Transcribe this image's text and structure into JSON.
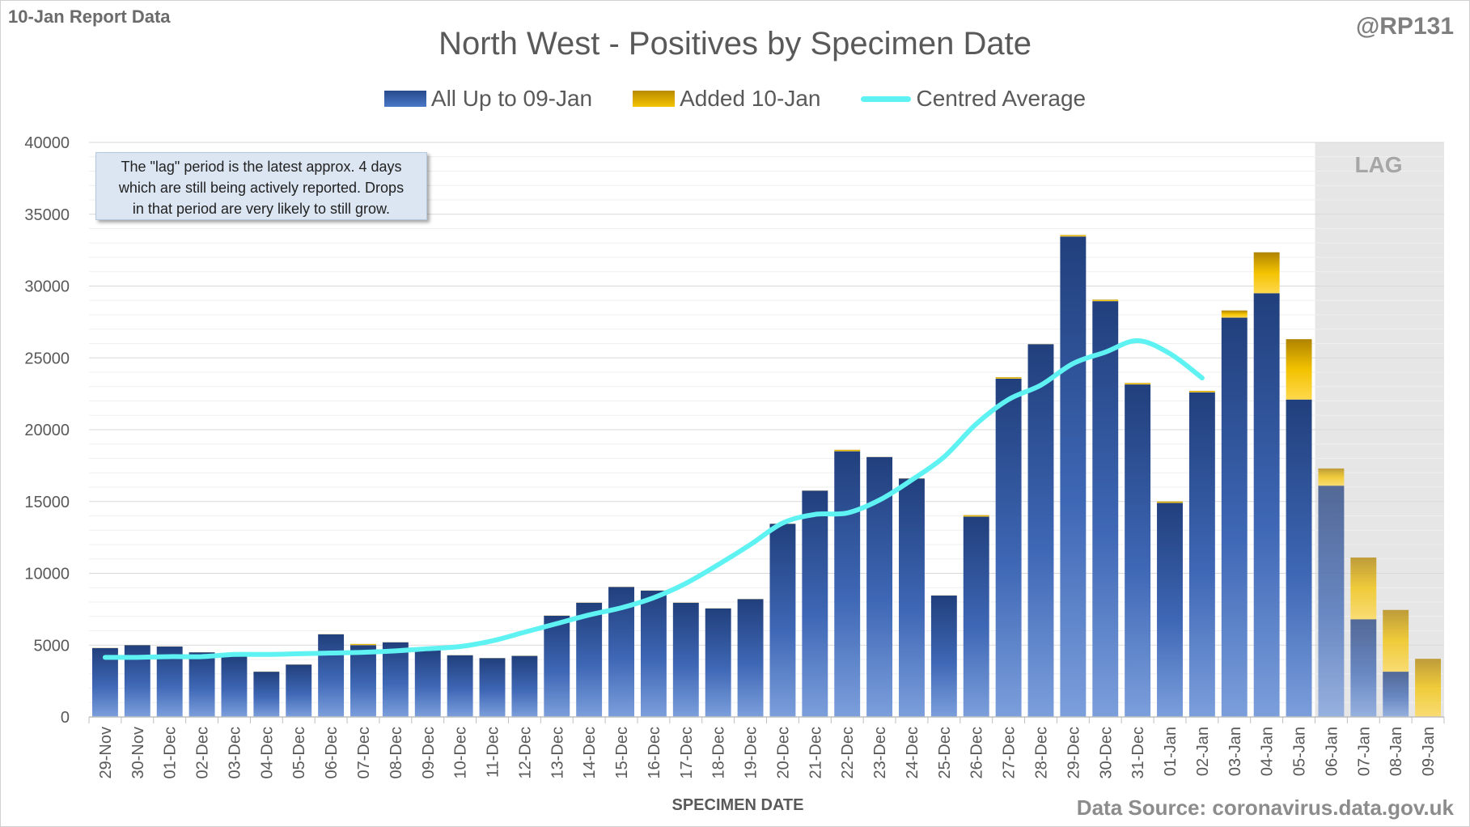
{
  "header": {
    "report_label": "10-Jan Report Data",
    "handle": "@RP131"
  },
  "footer": {
    "source": "Data Source: coronavirus.data.gov.uk"
  },
  "note": {
    "line1": "The \"lag\" period is the latest approx. 4 days",
    "line2": "which are still being actively reported.  Drops",
    "line3": "in that period are very likely to still grow."
  },
  "lag_label": "LAG",
  "colors": {
    "base_series": "#3e67b5",
    "added_series": "#e6b300",
    "average_line": "#5ff2f2",
    "lag_shade": "#e6e6e6"
  },
  "chart_data": {
    "type": "bar",
    "stacked": true,
    "title": "North West - Positives by Specimen Date",
    "xlabel": "SPECIMEN DATE",
    "ylabel": "",
    "ylim": [
      0,
      40000
    ],
    "yticks": [
      0,
      5000,
      10000,
      15000,
      20000,
      25000,
      30000,
      35000,
      40000
    ],
    "grid": true,
    "legend_position": "top",
    "lag_start_category": "06-Jan",
    "categories": [
      "29-Nov",
      "30-Nov",
      "01-Dec",
      "02-Dec",
      "03-Dec",
      "04-Dec",
      "05-Dec",
      "06-Dec",
      "07-Dec",
      "08-Dec",
      "09-Dec",
      "10-Dec",
      "11-Dec",
      "12-Dec",
      "13-Dec",
      "14-Dec",
      "15-Dec",
      "16-Dec",
      "17-Dec",
      "18-Dec",
      "19-Dec",
      "20-Dec",
      "21-Dec",
      "22-Dec",
      "23-Dec",
      "24-Dec",
      "25-Dec",
      "26-Dec",
      "27-Dec",
      "28-Dec",
      "29-Dec",
      "30-Dec",
      "31-Dec",
      "01-Jan",
      "02-Jan",
      "03-Jan",
      "04-Jan",
      "05-Jan",
      "06-Jan",
      "07-Jan",
      "08-Jan",
      "09-Jan"
    ],
    "series": [
      {
        "name": "All Up to 09-Jan",
        "values": [
          4800,
          5000,
          4900,
          4500,
          4200,
          3150,
          3650,
          5750,
          5000,
          5200,
          4750,
          4300,
          4100,
          4250,
          7050,
          7950,
          9050,
          8800,
          7950,
          7550,
          8200,
          13450,
          15750,
          18500,
          18100,
          16600,
          8450,
          13950,
          23550,
          25950,
          33450,
          28950,
          23150,
          14900,
          22600,
          27800,
          29500,
          22100,
          16100,
          6800,
          3150,
          0
        ]
      },
      {
        "name": "Added 10-Jan",
        "values": [
          10,
          10,
          10,
          10,
          10,
          10,
          10,
          10,
          80,
          10,
          10,
          10,
          10,
          10,
          10,
          10,
          10,
          10,
          10,
          10,
          10,
          10,
          10,
          100,
          10,
          10,
          10,
          100,
          100,
          10,
          100,
          100,
          100,
          100,
          100,
          500,
          2850,
          4200,
          1200,
          4300,
          4300,
          4050
        ]
      },
      {
        "name": "Centred Average",
        "type": "line",
        "values": [
          4150,
          4150,
          4200,
          4200,
          4350,
          4350,
          4400,
          4450,
          4500,
          4600,
          4750,
          4900,
          5300,
          5900,
          6500,
          7100,
          7600,
          8300,
          9300,
          10600,
          12000,
          13500,
          14100,
          14200,
          15100,
          16500,
          18100,
          20400,
          22100,
          23100,
          24600,
          25400,
          26200,
          25300,
          23600,
          null,
          null,
          null,
          null,
          null,
          null,
          null
        ]
      }
    ]
  }
}
